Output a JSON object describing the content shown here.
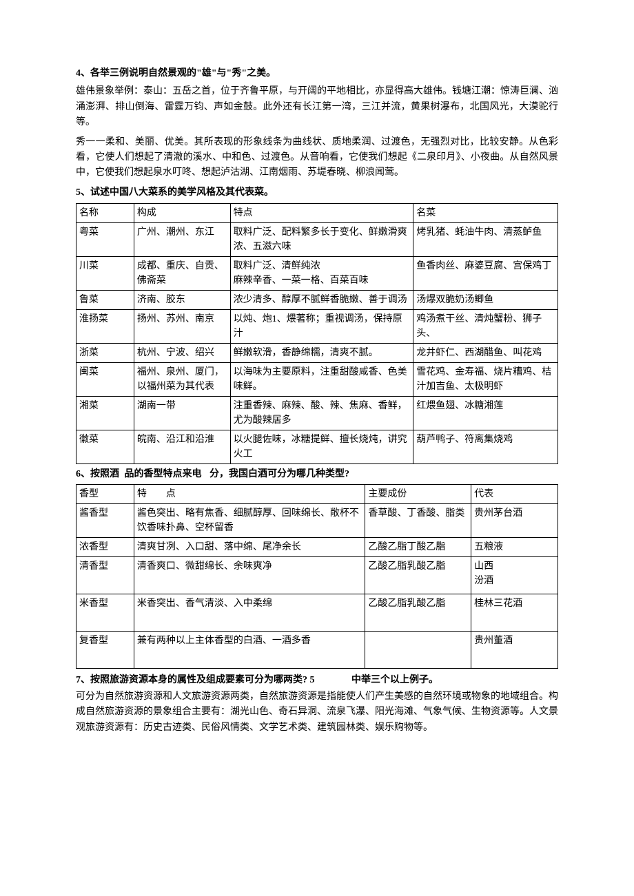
{
  "q4": {
    "heading": "4、各举三例说明自然景观的\"雄\"与\"秀\"之美。",
    "p1": "雄伟景象举例：泰山：五岳之首，位于齐鲁平原，与开阔的平地相比，亦显得高大雄伟。钱塘江潮：惊涛巨澜、汹涌澎湃、排山倒海、雷霆万钧、声如金鼓。此外还有长江第一湾，三江并流，黄果树瀑布，北国风光，大漠驼行等。",
    "p2": "秀一一柔和、美丽、优美。其所表现的形象线条为曲线状、质地柔润、过渡色，无强烈对比，比较安静。从色彩看，它使人们想起了清澈的溪水、中和色、过渡色。从音响看，它使我们想起《二泉印月》、小夜曲。从自然风景中，它使我们想起泉水叮咚、想起泸沽湖、江南烟雨、苏堤春晓、柳浪闻莺。"
  },
  "q5": {
    "heading": "5、试述中国八大菜系的美学风格及其代表菜。",
    "cols": [
      "名称",
      "构成",
      "特点",
      "名菜"
    ],
    "rows": [
      [
        "粤菜",
        "广州、潮州、东江",
        "取料广泛、配料繁多长于变化、鲜嫩滑爽浓、五滋六味",
        "烤乳猪、蚝油牛肉、清蒸鲈鱼"
      ],
      [
        "川菜",
        "成都、重庆、自贡、佛斋菜",
        "取料广泛、清鲜纯浓\n麻辣辛香、一菜一格、百菜百味",
        "鱼香肉丝、麻婆豆腐、宫保鸡丁"
      ],
      [
        "鲁菜",
        "济南、胶东",
        "浓少清多、醇厚不腻鲜香脆嫩、善于调汤",
        "汤爆双脆奶汤鲫鱼"
      ],
      [
        "淮扬菜",
        "扬州、苏州、南京",
        "以炖、炮1、煨著称；重视调汤，保持原汁",
        "鸡汤煮干丝、清炖蟹粉、狮子头、"
      ],
      [
        "浙菜",
        "杭州、宁波、绍兴",
        "鲜嫩软滑，香静绵糯，清爽不腻。",
        "龙井虾仁、西湖醋鱼、叫花鸡"
      ],
      [
        "闽菜",
        "福州、泉州、厦门，以福州菜为其代表",
        "以海味为主要原料，注重甜酸咸香、色美味鲜。",
        "雪花鸡、金寿福、烧片糟鸡、桔汁加吉鱼、太极明虾"
      ],
      [
        "湘菜",
        "湖南一带",
        "注重香辣、麻辣、酸、辣、焦麻、香鲜，尤为酸辣居多",
        "红煨鱼翅、冰糖湘莲"
      ],
      [
        "徽菜",
        "皖南、沿江和沿淮",
        "以火腿佐味，冰糖提鲜、擅长烧炖，讲究火工",
        "葫芦鸭子、符离集烧鸡"
      ]
    ],
    "widths": [
      "12%",
      "20%",
      "38%",
      "30%"
    ]
  },
  "q6": {
    "heading_parts": [
      "6、按照酒",
      "品的香型特点来电",
      "分，我国白酒可分为哪几种类型?"
    ],
    "cols": [
      "香型",
      "特　　点",
      "主要成份",
      "代表"
    ],
    "rows": [
      [
        "酱香型",
        "酱色突出、略有焦香、细腻醇厚、回味绵长、敞杯不饮香味扑鼻、空杯留香",
        "香草酸、丁香酸、脂类",
        "贵州茅台酒"
      ],
      [
        "浓香型",
        "清爽甘冽、入口甜、落中绵、尾净余长",
        "乙酸乙脂丁酸乙脂",
        "五粮液"
      ],
      [
        "清香型",
        "清香爽口、微甜绵长、余味爽净",
        "乙酸乙脂乳酸乙脂",
        "山西\n汾酒"
      ],
      [
        "米香型",
        "米香突出、香气清淡、入中柔绵",
        "乙酸乙脂乳酸乙脂",
        "桂林三花酒"
      ],
      [
        "复香型",
        "兼有两种以上主体香型的白酒、一酒多香",
        "",
        "贵州董酒"
      ]
    ],
    "widths": [
      "12%",
      "48%",
      "22%",
      "18%"
    ],
    "row_heights": [
      "auto",
      "auto",
      "54px",
      "54px",
      "54px"
    ]
  },
  "q7": {
    "heading_parts": [
      "7、按照旅游资源本身的属性及组成要素可分为哪两类? 5",
      "中举三个以上例子。"
    ],
    "p1": "可分为自然旅游资源和人文旅游资源两类，自然旅游资源是指能使人们产生美感的自然环境或物象的地域组合。构成自然旅游资源的景象组合主要有：湖光山色、奇石异洞、流泉飞瀑、阳光海滩、气象气候、生物资源等。人文景观旅游资源有：历史古迹类、民俗风情类、文学艺术类、建筑园林类、娱乐购物等。"
  }
}
